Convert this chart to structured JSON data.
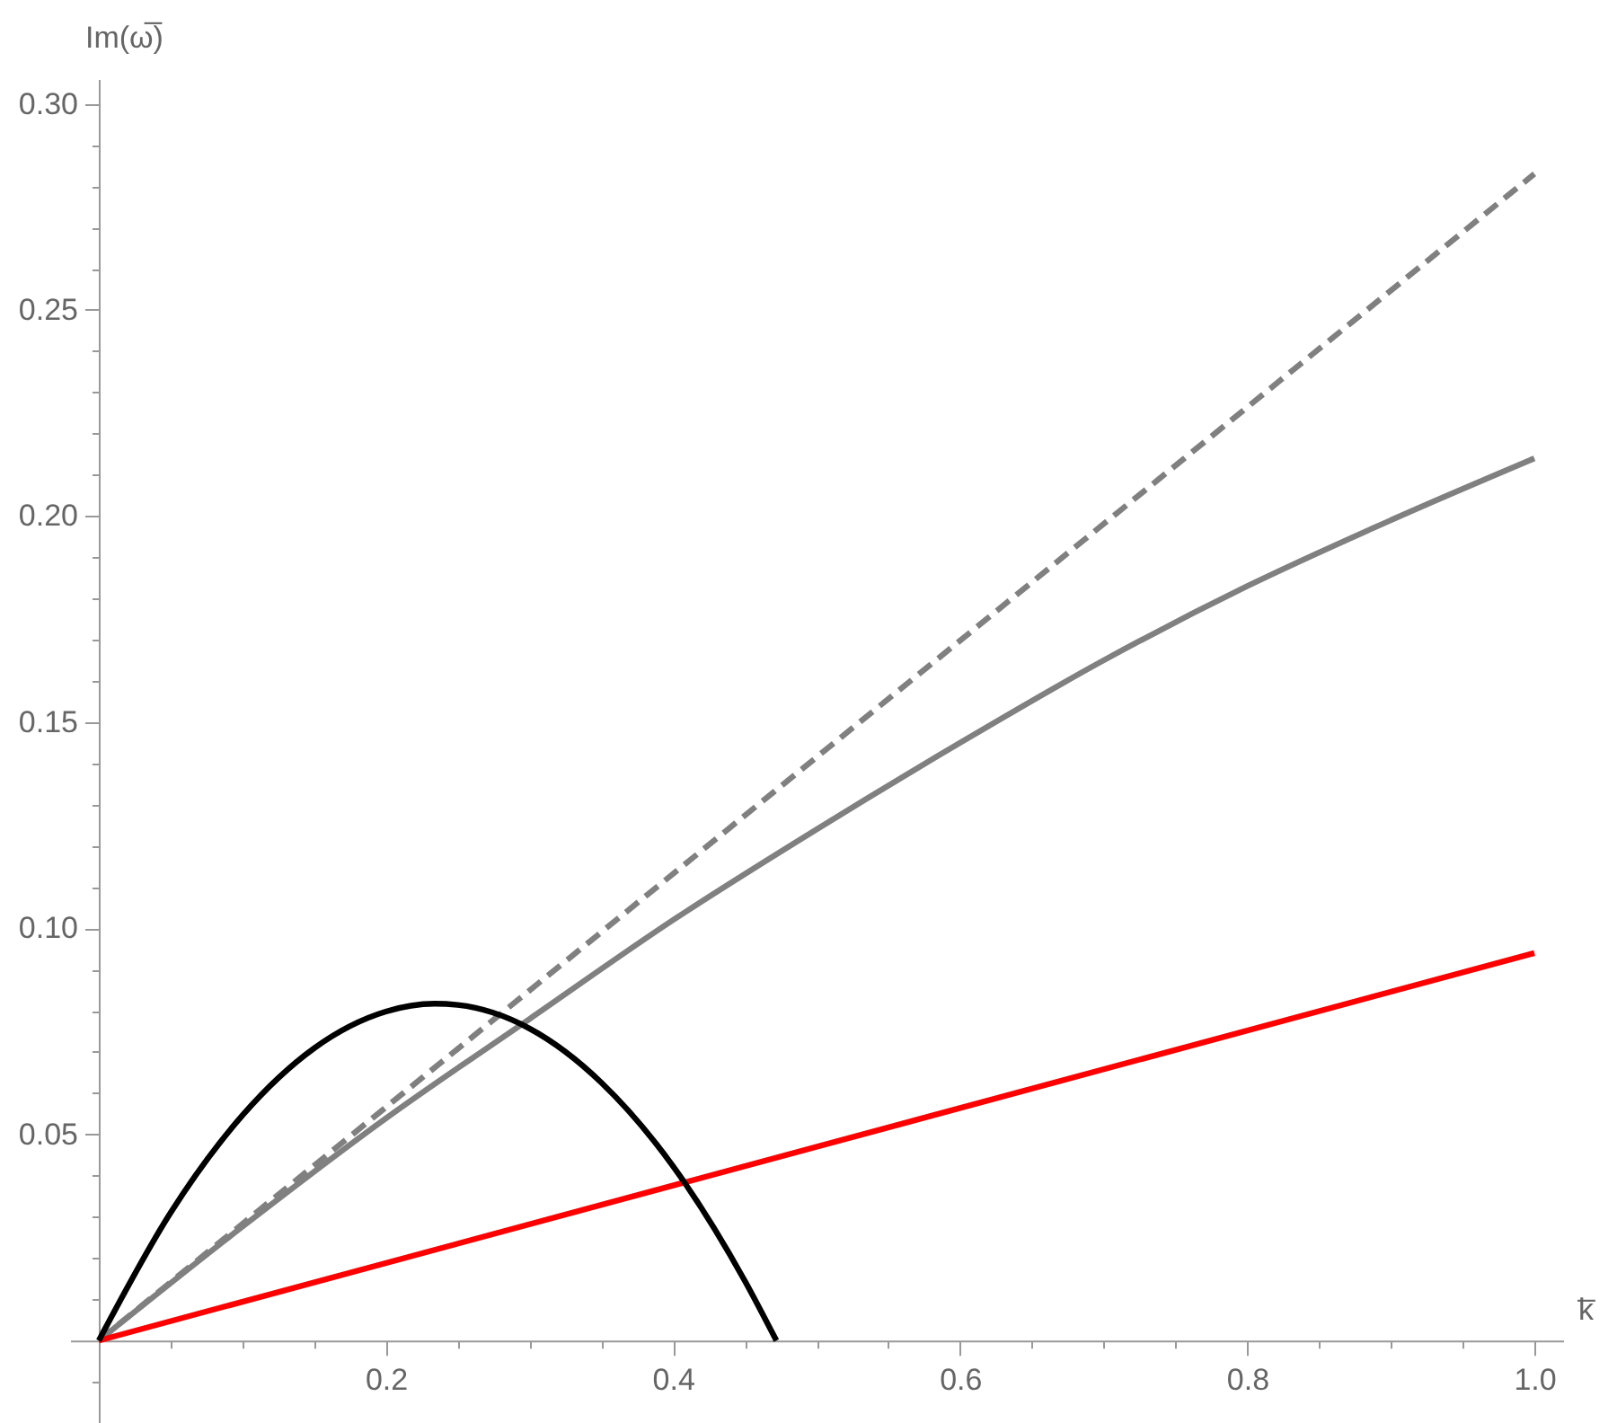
{
  "chart_data": {
    "type": "line",
    "xlabel": "k̅",
    "ylabel": "Im(ω̅)",
    "xlim": [
      -0.02,
      1.02
    ],
    "ylim": [
      -0.02,
      0.306
    ],
    "xticks": [
      {
        "value": 0.05,
        "label": null
      },
      {
        "value": 0.1,
        "label": null
      },
      {
        "value": 0.15,
        "label": null
      },
      0.2,
      {
        "value": 0.25,
        "label": null
      },
      {
        "value": 0.3,
        "label": null
      },
      {
        "value": 0.35,
        "label": null
      },
      0.4,
      {
        "value": 0.45,
        "label": null
      },
      {
        "value": 0.5,
        "label": null
      },
      {
        "value": 0.55,
        "label": null
      },
      0.6,
      {
        "value": 0.65,
        "label": null
      },
      {
        "value": 0.7,
        "label": null
      },
      {
        "value": 0.75,
        "label": null
      },
      0.8,
      {
        "value": 0.85,
        "label": null
      },
      {
        "value": 0.9,
        "label": null
      },
      {
        "value": 0.95,
        "label": null
      },
      {
        "value": 1.0,
        "label": "1.0"
      }
    ],
    "yticks": [
      {
        "value": -0.01,
        "label": null
      },
      {
        "value": 0.01,
        "label": null
      },
      {
        "value": 0.02,
        "label": null
      },
      {
        "value": 0.03,
        "label": null
      },
      {
        "value": 0.04,
        "label": null
      },
      0.05,
      {
        "value": 0.06,
        "label": null
      },
      {
        "value": 0.07,
        "label": null
      },
      {
        "value": 0.08,
        "label": null
      },
      {
        "value": 0.09,
        "label": null
      },
      {
        "value": 0.1,
        "label": "0.10"
      },
      {
        "value": 0.11,
        "label": null
      },
      {
        "value": 0.12,
        "label": null
      },
      {
        "value": 0.13,
        "label": null
      },
      {
        "value": 0.14,
        "label": null
      },
      0.15,
      {
        "value": 0.16,
        "label": null
      },
      {
        "value": 0.17,
        "label": null
      },
      {
        "value": 0.18,
        "label": null
      },
      {
        "value": 0.19,
        "label": null
      },
      {
        "value": 0.2,
        "label": "0.20"
      },
      {
        "value": 0.21,
        "label": null
      },
      {
        "value": 0.22,
        "label": null
      },
      {
        "value": 0.23,
        "label": null
      },
      {
        "value": 0.24,
        "label": null
      },
      0.25,
      {
        "value": 0.26,
        "label": null
      },
      {
        "value": 0.27,
        "label": null
      },
      {
        "value": 0.28,
        "label": null
      },
      {
        "value": 0.29,
        "label": null
      },
      {
        "value": 0.3,
        "label": "0.30"
      }
    ],
    "series": [
      {
        "color": "#808080",
        "line_style": "dashed",
        "x": [
          0,
          1.0
        ],
        "values": [
          0,
          0.283
        ]
      },
      {
        "color": "#808080",
        "line_style": "solid",
        "x": [
          0,
          0.1,
          0.2,
          0.3,
          0.4,
          0.5,
          0.6,
          0.7,
          0.8,
          0.9,
          1.0
        ],
        "values": [
          0,
          0.0276,
          0.0539,
          0.078,
          0.102,
          0.124,
          0.145,
          0.165,
          0.183,
          0.199,
          0.214
        ]
      },
      {
        "color": "#ff0000",
        "line_style": "solid",
        "x": [
          0,
          1.0
        ],
        "values": [
          0,
          0.094
        ]
      },
      {
        "color": "#000000",
        "line_style": "solid",
        "x": [
          0,
          0.05,
          0.1,
          0.15,
          0.2,
          0.234,
          0.25,
          0.3,
          0.35,
          0.4,
          0.45,
          0.472
        ],
        "values": [
          0,
          0.031,
          0.0546,
          0.0709,
          0.0798,
          0.0817,
          0.0814,
          0.0757,
          0.0626,
          0.0423,
          0.0145,
          0
        ]
      }
    ]
  }
}
